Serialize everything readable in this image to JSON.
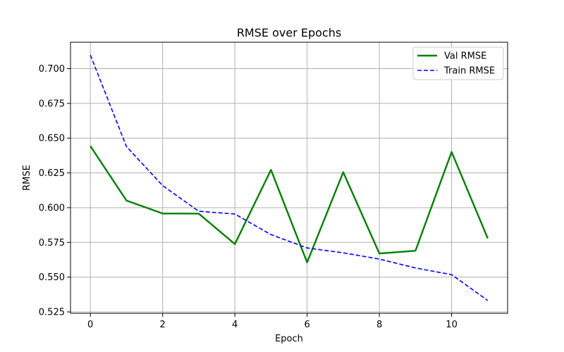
{
  "chart_data": {
    "type": "line",
    "title": "RMSE over Epochs",
    "xlabel": "Epoch",
    "ylabel": "RMSE",
    "x": [
      0,
      1,
      2,
      3,
      4,
      5,
      6,
      7,
      8,
      9,
      10,
      11
    ],
    "xlim": [
      -0.55,
      11.55
    ],
    "ylim": [
      0.524,
      0.719
    ],
    "xticks": [
      0,
      2,
      4,
      6,
      8,
      10
    ],
    "yticks": [
      0.525,
      0.55,
      0.575,
      0.6,
      0.625,
      0.65,
      0.675,
      0.7
    ],
    "ytick_labels": [
      "0.525",
      "0.550",
      "0.575",
      "0.600",
      "0.625",
      "0.650",
      "0.675",
      "0.700"
    ],
    "grid": true,
    "legend_position": "top-right",
    "series": [
      {
        "name": "Val RMSE",
        "color": "#008000",
        "style": "solid",
        "values": [
          0.6443,
          0.6051,
          0.5958,
          0.5957,
          0.5738,
          0.6272,
          0.5606,
          0.6255,
          0.567,
          0.569,
          0.6401,
          0.5779
        ]
      },
      {
        "name": "Train RMSE",
        "color": "#0000ff",
        "style": "dashed",
        "values": [
          0.7098,
          0.6439,
          0.6159,
          0.5974,
          0.5954,
          0.5806,
          0.571,
          0.5675,
          0.563,
          0.5566,
          0.5518,
          0.5332
        ]
      }
    ]
  }
}
